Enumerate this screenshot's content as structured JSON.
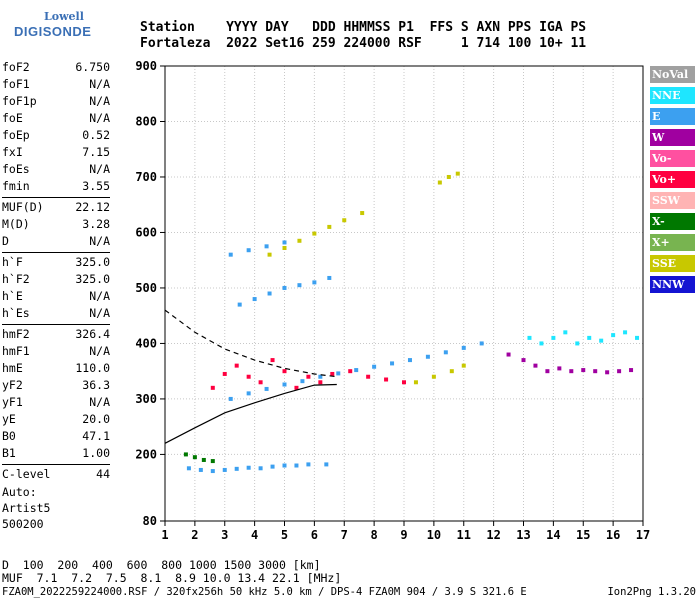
{
  "logo": {
    "top": "Lowell",
    "bottom": "DIGISONDE"
  },
  "header": {
    "line1": "Station    YYYY DAY   DDD HHMMSS P1  FFS S AXN PPS IGA PS",
    "line2": "Fortaleza  2022 Set16 259 224000 RSF     1 714 100 10+ 11"
  },
  "params": [
    {
      "label": "foF2",
      "value": "6.750"
    },
    {
      "label": "foF1",
      "value": "N/A"
    },
    {
      "label": "foF1p",
      "value": "N/A"
    },
    {
      "label": "foE",
      "value": "N/A"
    },
    {
      "label": "foEp",
      "value": "0.52"
    },
    {
      "label": "fxI",
      "value": "7.15"
    },
    {
      "label": "foEs",
      "value": "N/A"
    },
    {
      "label": "fmin",
      "value": "3.55"
    },
    {
      "label": "MUF(D)",
      "value": "22.12"
    },
    {
      "label": "M(D)",
      "value": "3.28"
    },
    {
      "label": "D",
      "value": "N/A"
    },
    {
      "label": "h`F",
      "value": "325.0"
    },
    {
      "label": "h`F2",
      "value": "325.0"
    },
    {
      "label": "h`E",
      "value": "N/A"
    },
    {
      "label": "h`Es",
      "value": "N/A"
    },
    {
      "label": "hmF2",
      "value": "326.4"
    },
    {
      "label": "hmF1",
      "value": "N/A"
    },
    {
      "label": "hmE",
      "value": "110.0"
    },
    {
      "label": "yF2",
      "value": "36.3"
    },
    {
      "label": "yF1",
      "value": "N/A"
    },
    {
      "label": "yE",
      "value": "20.0"
    },
    {
      "label": "B0",
      "value": "47.1"
    },
    {
      "label": "B1",
      "value": "1.00"
    },
    {
      "label": "C-level",
      "value": "44"
    }
  ],
  "auto": {
    "line1": "Auto:",
    "line2": "Artist5",
    "line3": "500200"
  },
  "distance_table": {
    "d_label": "D",
    "d_values": "  100  200  400  600  800 1000 1500 3000 [km]",
    "muf_label": "MUF",
    "muf_values": "  7.1  7.2  7.5  8.1  8.9 10.0 13.4 22.1 [MHz]"
  },
  "footer": {
    "left": "FZA0M_2022259224000.RSF / 320fx256h 50 kHz 5.0 km / DPS-4 FZA0M 904 / 3.9 S 321.6 E",
    "right": "Ion2Png 1.3.20"
  },
  "legend": [
    {
      "label": "NoVal",
      "color": "#a0a0a0"
    },
    {
      "label": "NNE",
      "color": "#1ee6ff"
    },
    {
      "label": "E",
      "color": "#3ca0f0"
    },
    {
      "label": "W",
      "color": "#a000a0"
    },
    {
      "label": "Vo-",
      "color": "#ff50a0"
    },
    {
      "label": "Vo+",
      "color": "#ff0040"
    },
    {
      "label": "SSW",
      "color": "#ffb4b4"
    },
    {
      "label": "X-",
      "color": "#007800"
    },
    {
      "label": "X+",
      "color": "#78b450"
    },
    {
      "label": "SSE",
      "color": "#c8c800"
    },
    {
      "label": "NNW",
      "color": "#1414d2"
    }
  ],
  "chart_data": {
    "type": "scatter",
    "title": "",
    "xlabel": "",
    "ylabel": "",
    "xlim": [
      1,
      17
    ],
    "ylim": [
      80,
      900
    ],
    "x_ticks": [
      1,
      2,
      3,
      4,
      5,
      6,
      7,
      8,
      9,
      10,
      11,
      12,
      13,
      14,
      15,
      16,
      17
    ],
    "y_ticks": [
      80,
      200,
      300,
      400,
      500,
      600,
      700,
      800,
      900
    ],
    "grid": true,
    "series": [
      {
        "color": "#3ca0f0",
        "points": [
          [
            1.8,
            175
          ],
          [
            2.2,
            172
          ],
          [
            2.6,
            170
          ],
          [
            3.0,
            172
          ],
          [
            3.4,
            174
          ],
          [
            3.8,
            176
          ],
          [
            4.2,
            175
          ],
          [
            4.6,
            178
          ],
          [
            5.0,
            180
          ],
          [
            5.4,
            180
          ],
          [
            5.8,
            182
          ],
          [
            6.4,
            182
          ]
        ]
      },
      {
        "color": "#3ca0f0",
        "points": [
          [
            3.2,
            300
          ],
          [
            3.8,
            310
          ],
          [
            4.4,
            318
          ],
          [
            5.0,
            326
          ],
          [
            5.6,
            332
          ],
          [
            6.2,
            340
          ],
          [
            6.8,
            346
          ],
          [
            7.4,
            352
          ],
          [
            8.0,
            358
          ],
          [
            8.6,
            364
          ],
          [
            9.2,
            370
          ],
          [
            9.8,
            376
          ],
          [
            10.4,
            384
          ],
          [
            11.0,
            392
          ],
          [
            11.6,
            400
          ]
        ]
      },
      {
        "color": "#3ca0f0",
        "points": [
          [
            3.5,
            470
          ],
          [
            4.0,
            480
          ],
          [
            4.5,
            490
          ],
          [
            5.0,
            500
          ],
          [
            5.5,
            505
          ],
          [
            6.0,
            510
          ],
          [
            6.5,
            518
          ]
        ]
      },
      {
        "color": "#3ca0f0",
        "points": [
          [
            3.2,
            560
          ],
          [
            3.8,
            568
          ],
          [
            4.4,
            575
          ],
          [
            5.0,
            582
          ]
        ]
      },
      {
        "color": "#c8c800",
        "points": [
          [
            4.5,
            560
          ],
          [
            5.0,
            572
          ],
          [
            5.5,
            585
          ],
          [
            6.0,
            598
          ],
          [
            6.5,
            610
          ],
          [
            7.0,
            622
          ],
          [
            7.6,
            635
          ]
        ]
      },
      {
        "color": "#ff0040",
        "points": [
          [
            2.6,
            320
          ],
          [
            3.0,
            345
          ],
          [
            3.4,
            360
          ],
          [
            3.8,
            340
          ],
          [
            4.2,
            330
          ],
          [
            4.6,
            370
          ],
          [
            5.0,
            350
          ],
          [
            5.4,
            320
          ],
          [
            5.8,
            340
          ],
          [
            6.2,
            330
          ],
          [
            6.6,
            345
          ],
          [
            7.2,
            350
          ],
          [
            7.8,
            340
          ],
          [
            8.4,
            335
          ],
          [
            9.0,
            330
          ]
        ]
      },
      {
        "color": "#a000a0",
        "points": [
          [
            12.5,
            380
          ],
          [
            13.0,
            370
          ],
          [
            13.4,
            360
          ],
          [
            13.8,
            350
          ],
          [
            14.2,
            355
          ],
          [
            14.6,
            350
          ],
          [
            15.0,
            352
          ],
          [
            15.4,
            350
          ],
          [
            15.8,
            348
          ],
          [
            16.2,
            350
          ],
          [
            16.6,
            352
          ]
        ]
      },
      {
        "color": "#1ee6ff",
        "points": [
          [
            13.2,
            410
          ],
          [
            13.6,
            400
          ],
          [
            14.0,
            410
          ],
          [
            14.4,
            420
          ],
          [
            14.8,
            400
          ],
          [
            15.2,
            410
          ],
          [
            15.6,
            405
          ],
          [
            16.0,
            415
          ],
          [
            16.4,
            420
          ],
          [
            16.8,
            410
          ]
        ]
      },
      {
        "color": "#c8c800",
        "points": [
          [
            10.2,
            690
          ],
          [
            10.5,
            700
          ],
          [
            10.8,
            706
          ],
          [
            9.4,
            330
          ],
          [
            10.0,
            340
          ],
          [
            10.6,
            350
          ],
          [
            11.0,
            360
          ]
        ]
      },
      {
        "color": "#007800",
        "points": [
          [
            1.7,
            200
          ],
          [
            2.0,
            195
          ],
          [
            2.3,
            190
          ],
          [
            2.6,
            188
          ]
        ]
      }
    ],
    "profile_curve": [
      [
        1.0,
        220
      ],
      [
        2.0,
        248
      ],
      [
        3.0,
        275
      ],
      [
        4.0,
        293
      ],
      [
        5.0,
        310
      ],
      [
        6.0,
        325
      ],
      [
        6.75,
        326
      ]
    ],
    "trace_curve_upper": [
      [
        1.0,
        460
      ],
      [
        2.0,
        420
      ],
      [
        3.0,
        390
      ],
      [
        4.0,
        370
      ],
      [
        5.0,
        355
      ],
      [
        6.0,
        345
      ],
      [
        6.75,
        340
      ]
    ]
  }
}
